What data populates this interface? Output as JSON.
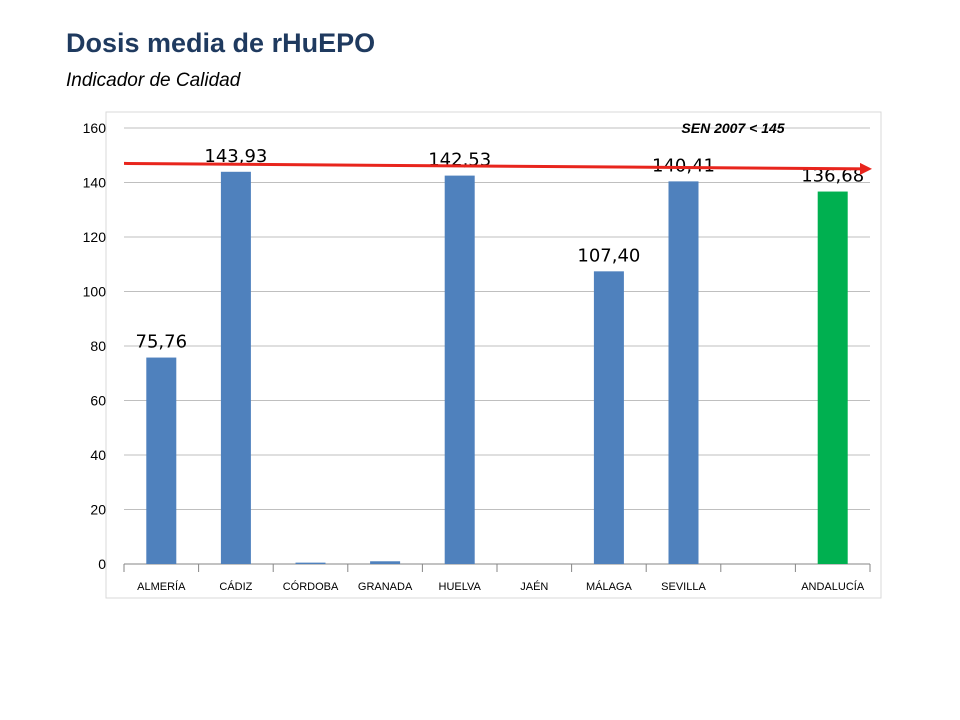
{
  "header": {
    "title": "Dosis media de rHuEPO",
    "subtitle": "Indicador de Calidad"
  },
  "chart_data": {
    "type": "bar",
    "categories": [
      "ALMERÍA",
      "CÁDIZ",
      "CÓRDOBA",
      "GRANADA",
      "HUELVA",
      "JAÉN",
      "MÁLAGA",
      "SEVILLA",
      "",
      "ANDALUCÍA"
    ],
    "values": [
      75.76,
      143.93,
      0.5,
      1,
      142.53,
      0,
      107.4,
      140.41,
      0,
      136.68
    ],
    "data_labels": [
      "75,76",
      "143,93",
      "",
      "",
      "142,53",
      "",
      "107,40",
      "140,41",
      "",
      "136,68"
    ],
    "bar_colors": [
      "#4f81bd",
      "#4f81bd",
      "#4f81bd",
      "#4f81bd",
      "#4f81bd",
      "#4f81bd",
      "#4f81bd",
      "#4f81bd",
      "#4f81bd",
      "#00b050"
    ],
    "ylim": [
      0,
      160
    ],
    "yticks": [
      0,
      20,
      40,
      60,
      80,
      100,
      120,
      140,
      160
    ],
    "grid": true,
    "reference_line": {
      "label": "SEN 2007 < 145",
      "y_start": 147,
      "y_end": 145,
      "color": "#e8251d"
    }
  }
}
